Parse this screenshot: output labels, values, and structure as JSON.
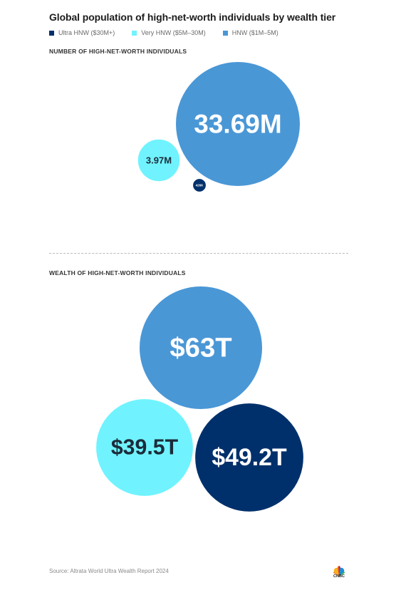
{
  "title": "Global population of high-net-worth individuals by wealth tier",
  "legend": [
    {
      "label": "Ultra HNW ($30M+)",
      "color": "#00306b"
    },
    {
      "label": "Very HNW ($5M–30M)",
      "color": "#70f3fe"
    },
    {
      "label": "HNW ($1M–5M)",
      "color": "#4a97d6"
    }
  ],
  "chart_data": [
    {
      "type": "bubble",
      "title": "NUMBER OF HIGH-NET-WORTH INDIVIDUALS",
      "series": [
        {
          "name": "HNW ($1M–5M)",
          "value": 33.69,
          "unit": "M",
          "label": "33.69M",
          "color": "#4a97d6",
          "label_color": "#ffffff"
        },
        {
          "name": "Very HNW ($5M–30M)",
          "value": 3.97,
          "unit": "M",
          "label": "3.97M",
          "color": "#70f3fe",
          "label_color": "#1c2b3a"
        },
        {
          "name": "Ultra HNW ($30M+)",
          "value": 0.426,
          "unit": "M",
          "label": "426K",
          "color": "#00306b",
          "label_color": "#ffffff"
        }
      ]
    },
    {
      "type": "bubble",
      "title": "WEALTH OF HIGH-NET-WORTH INDIVIDUALS",
      "series": [
        {
          "name": "HNW ($1M–5M)",
          "value": 63,
          "unit": "T",
          "label": "$63T",
          "color": "#4a97d6",
          "label_color": "#ffffff"
        },
        {
          "name": "Very HNW ($5M–30M)",
          "value": 39.5,
          "unit": "T",
          "label": "$39.5T",
          "color": "#70f3fe",
          "label_color": "#1c2b3a"
        },
        {
          "name": "Ultra HNW ($30M+)",
          "value": 49.2,
          "unit": "T",
          "label": "$49.2T",
          "color": "#00306b",
          "label_color": "#ffffff"
        }
      ]
    }
  ],
  "source": "Source: Altrata World Ultra Wealth Report 2024",
  "logo_text": "CNBC"
}
